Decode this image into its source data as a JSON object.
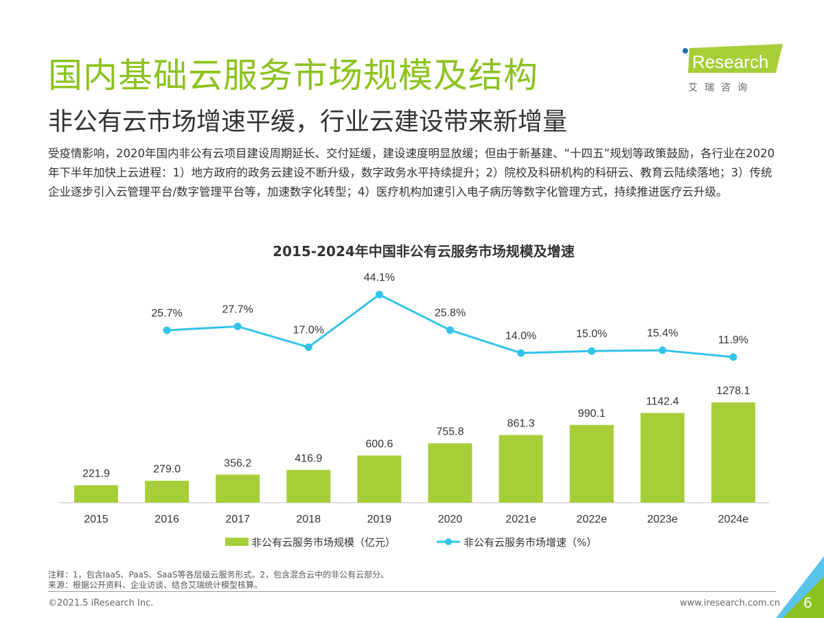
{
  "header": {
    "title": "国内基础云服务市场规模及结构",
    "subtitle": "非公有云市场增速平缓，行业云建设带来新增量"
  },
  "logo": {
    "text": "iResearch",
    "cn": "艾 瑞 咨 询",
    "color": "#a6ce39"
  },
  "body_text": "受疫情影响，2020年国内非公有云项目建设周期延长、交付延缓，建设速度明显放缓；但由于新基建、“十四五”规划等政策鼓励，各行业在2020年下半年加快上云进程：1）地方政府的政务云建设不断升级，数字政务水平持续提升；2）院校及科研机构的科研云、教育云陆续落地；3）传统企业逐步引入云管理平台/数字管理平台等，加速数字化转型；4）医疗机构加速引入电子病历等数字化管理方式，持续推进医疗云升级。",
  "chart_data": {
    "type": "bar+line",
    "title": "2015-2024年中国非公有云服务市场规模及增速",
    "categories": [
      "2015",
      "2016",
      "2017",
      "2018",
      "2019",
      "2020",
      "2021e",
      "2022e",
      "2023e",
      "2024e"
    ],
    "series": [
      {
        "name": "非公有云服务市场规模（亿元）",
        "type": "bar",
        "color": "#a6ce39",
        "values": [
          221.9,
          279.0,
          356.2,
          416.9,
          600.6,
          755.8,
          861.3,
          990.1,
          1142.4,
          1278.1
        ],
        "labels": [
          "221.9",
          "279.0",
          "356.2",
          "416.9",
          "600.6",
          "755.8",
          "861.3",
          "990.1",
          "1142.4",
          "1278.1"
        ]
      },
      {
        "name": "非公有云服务市场增速（%）",
        "type": "line",
        "color": "#33c3ea",
        "values": [
          null,
          25.7,
          27.7,
          17.0,
          44.1,
          25.8,
          14.0,
          15.0,
          15.4,
          11.9
        ],
        "labels": [
          "",
          "25.7%",
          "27.7%",
          "17.0%",
          "44.1%",
          "25.8%",
          "14.0%",
          "15.0%",
          "15.4%",
          "11.9%"
        ]
      }
    ],
    "legend": "bottom",
    "grid": false
  },
  "footer": {
    "note": "注释：1，包含IaaS、PaaS、SaaS等各层级云服务形式。2，包含混合云中的非公有云部分。",
    "source": "来源：根据公开资料、企业访谈、结合艾瑞统计模型核算。",
    "copyright": "©2021.5 iResearch Inc.",
    "url": "www.iresearch.com.cn",
    "page": "6"
  }
}
